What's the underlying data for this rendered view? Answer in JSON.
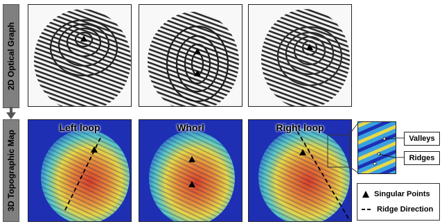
{
  "rows": {
    "top_label": "2D Optical Graph",
    "bottom_label": "3D Topographic Map"
  },
  "panels": {
    "left_loop": "Left loop",
    "whorl": "Whorl",
    "right_loop": "Right loop"
  },
  "callouts": {
    "valleys": "Valleys",
    "ridges": "Ridges"
  },
  "legend": {
    "singular_points": "Singular Points",
    "ridge_direction": "Ridge Direction"
  },
  "colors": {
    "heat_blue": "#1e2fb4",
    "heat_cyan": "#38c0d8",
    "heat_yellow": "#e6d84a",
    "heat_red": "#d8402a",
    "label_gray": "#808080"
  },
  "icons": [
    "triangle-marker-icon",
    "dashed-line-icon",
    "down-arrow-icon"
  ]
}
